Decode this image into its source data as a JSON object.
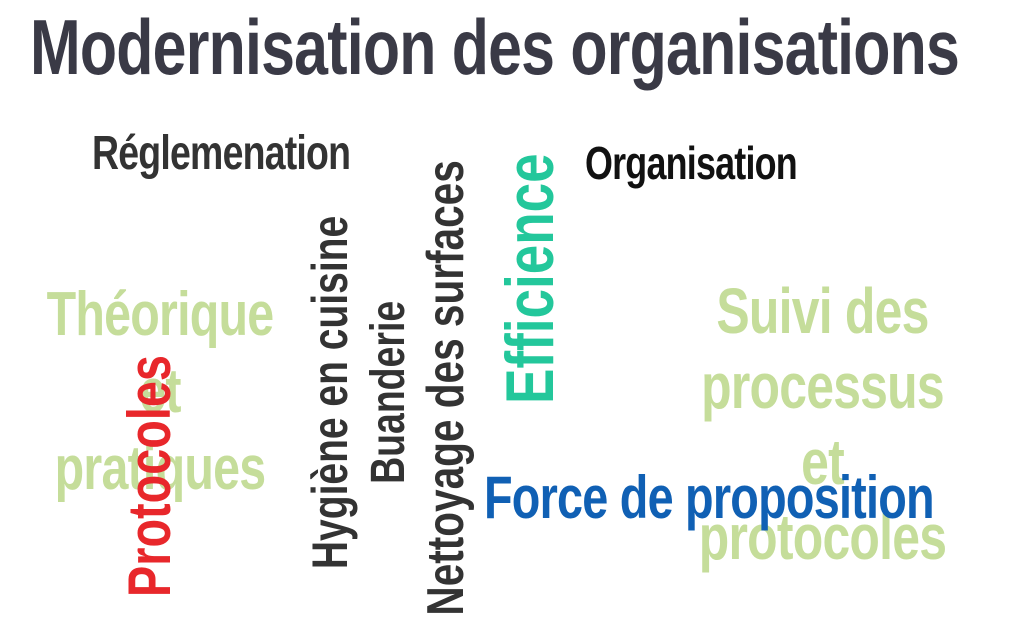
{
  "title": "Modernisation des organisations",
  "words": {
    "reglementation": "Réglemenation",
    "organisation": "Organisation",
    "theorique": "Théorique\net pratiques",
    "suivi": "Suivi des\nprocessus et\nprotocoles",
    "force": "Force de proposition",
    "protocoles": "Protocoles",
    "hygiene": "Hygiène en cuisine",
    "buanderie": "Buanderie",
    "nettoyage": "Nettoyage des surfaces",
    "efficience": "Efficience"
  },
  "colors": {
    "title": "#3a3a46",
    "dark": "#333333",
    "black": "#111111",
    "light_green": "#c5dd9a",
    "teal": "#23c79b",
    "blue": "#1060b4",
    "red": "#e8272b"
  }
}
